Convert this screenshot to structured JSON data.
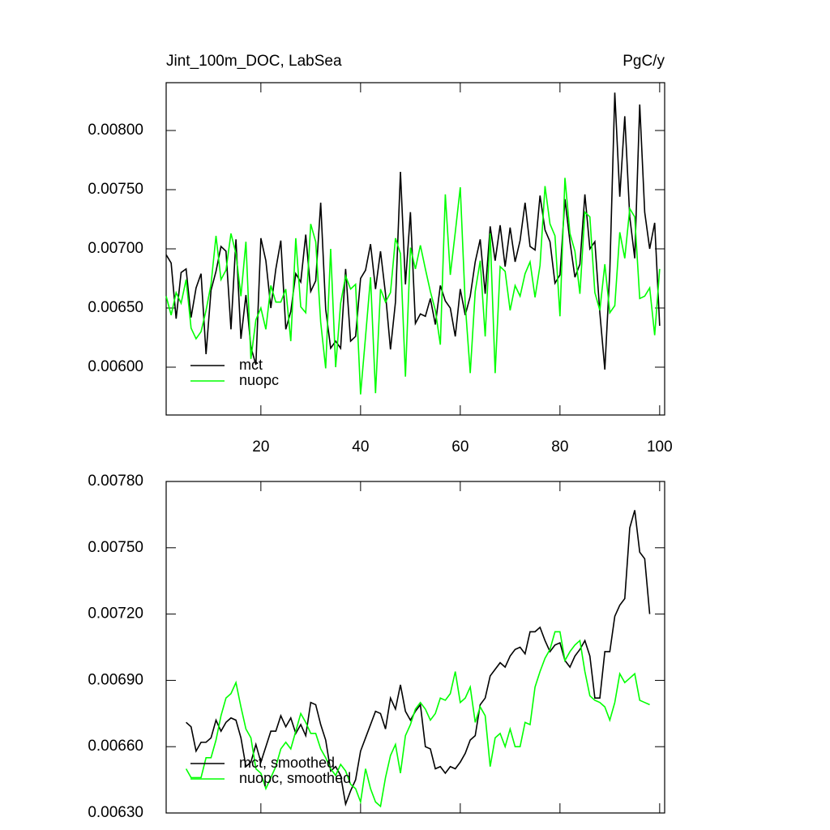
{
  "chart_data": [
    {
      "type": "line",
      "title": "Jint_100m_DOC, LabSea",
      "right_title": "PgC/y",
      "x": [
        1,
        2,
        3,
        4,
        5,
        6,
        7,
        8,
        9,
        10,
        11,
        12,
        13,
        14,
        15,
        16,
        17,
        18,
        19,
        20,
        21,
        22,
        23,
        24,
        25,
        26,
        27,
        28,
        29,
        30,
        31,
        32,
        33,
        34,
        35,
        36,
        37,
        38,
        39,
        40,
        41,
        42,
        43,
        44,
        45,
        46,
        47,
        48,
        49,
        50,
        51,
        52,
        53,
        54,
        55,
        56,
        57,
        58,
        59,
        60,
        61,
        62,
        63,
        64,
        65,
        66,
        67,
        68,
        69,
        70,
        71,
        72,
        73,
        74,
        75,
        76,
        77,
        78,
        79,
        80,
        81,
        82,
        83,
        84,
        85,
        86,
        87,
        88,
        89,
        90,
        91,
        92,
        93,
        94,
        95,
        96,
        97,
        98,
        99,
        100
      ],
      "series": [
        {
          "name": "mct",
          "color": "#000000",
          "values": [
            0.00695,
            0.00688,
            0.00641,
            0.0068,
            0.00683,
            0.00642,
            0.00667,
            0.00679,
            0.00611,
            0.00665,
            0.00681,
            0.00702,
            0.00698,
            0.00632,
            0.00708,
            0.00624,
            0.00661,
            0.00617,
            0.00602,
            0.00709,
            0.0069,
            0.0065,
            0.00683,
            0.00707,
            0.00632,
            0.00647,
            0.00679,
            0.00672,
            0.00712,
            0.00664,
            0.00673,
            0.00739,
            0.00649,
            0.00616,
            0.00622,
            0.00616,
            0.00683,
            0.00622,
            0.00626,
            0.00675,
            0.00682,
            0.00704,
            0.00666,
            0.00698,
            0.00662,
            0.00615,
            0.00655,
            0.00765,
            0.0067,
            0.00731,
            0.00637,
            0.00645,
            0.00643,
            0.00658,
            0.00636,
            0.00669,
            0.00656,
            0.0065,
            0.00626,
            0.00666,
            0.00644,
            0.0066,
            0.00689,
            0.00708,
            0.00662,
            0.00719,
            0.0069,
            0.0072,
            0.00685,
            0.00718,
            0.00689,
            0.00707,
            0.00739,
            0.00702,
            0.00699,
            0.00745,
            0.00716,
            0.00706,
            0.00671,
            0.00678,
            0.00742,
            0.00706,
            0.00676,
            0.00687,
            0.00746,
            0.007,
            0.00706,
            0.00646,
            0.00598,
            0.00681,
            0.00832,
            0.00744,
            0.00812,
            0.00727,
            0.00692,
            0.00822,
            0.00731,
            0.007,
            0.00722,
            0.00635
          ]
        },
        {
          "name": "nuopc",
          "color": "#00ff00",
          "values": [
            0.0066,
            0.00644,
            0.00663,
            0.00654,
            0.00674,
            0.00633,
            0.00624,
            0.0063,
            0.00648,
            0.0067,
            0.00711,
            0.00674,
            0.00682,
            0.00713,
            0.00696,
            0.0066,
            0.00706,
            0.00607,
            0.0064,
            0.0065,
            0.00632,
            0.00669,
            0.00655,
            0.00655,
            0.00666,
            0.00622,
            0.00709,
            0.00651,
            0.00646,
            0.00721,
            0.00706,
            0.00638,
            0.00599,
            0.007,
            0.006,
            0.00654,
            0.00677,
            0.00666,
            0.0067,
            0.00577,
            0.00626,
            0.00676,
            0.00578,
            0.00666,
            0.00655,
            0.00663,
            0.00709,
            0.00696,
            0.00592,
            0.00701,
            0.00683,
            0.00703,
            0.00683,
            0.00664,
            0.00648,
            0.00619,
            0.00746,
            0.00678,
            0.00714,
            0.00752,
            0.00653,
            0.00595,
            0.00664,
            0.0069,
            0.00626,
            0.00713,
            0.00595,
            0.00685,
            0.00681,
            0.00648,
            0.00669,
            0.0066,
            0.00679,
            0.00689,
            0.00659,
            0.00686,
            0.00753,
            0.00721,
            0.00711,
            0.00643,
            0.0076,
            0.00713,
            0.00698,
            0.00662,
            0.00731,
            0.00727,
            0.00663,
            0.00648,
            0.00687,
            0.00646,
            0.00652,
            0.00714,
            0.00692,
            0.00734,
            0.00727,
            0.00658,
            0.0066,
            0.00667,
            0.00627,
            0.00683
          ]
        }
      ],
      "xlim": [
        1,
        101
      ],
      "xticks": [
        20,
        40,
        60,
        80,
        100
      ],
      "show_xtick_labels": true,
      "ylim": [
        0.005596,
        0.008404
      ],
      "yticks": [
        {
          "value": 0.006,
          "label": "0.00600"
        },
        {
          "value": 0.0065,
          "label": "0.00650"
        },
        {
          "value": 0.007,
          "label": "0.00700"
        },
        {
          "value": 0.0075,
          "label": "0.00750"
        },
        {
          "value": 0.008,
          "label": "0.00800"
        }
      ],
      "legend": "lower left"
    },
    {
      "type": "line",
      "x": [
        5,
        6,
        7,
        8,
        9,
        10,
        11,
        12,
        13,
        14,
        15,
        16,
        17,
        18,
        19,
        20,
        21,
        22,
        23,
        24,
        25,
        26,
        27,
        28,
        29,
        30,
        31,
        32,
        33,
        34,
        35,
        36,
        37,
        38,
        39,
        40,
        41,
        42,
        43,
        44,
        45,
        46,
        47,
        48,
        49,
        50,
        51,
        52,
        53,
        54,
        55,
        56,
        57,
        58,
        59,
        60,
        61,
        62,
        63,
        64,
        65,
        66,
        67,
        68,
        69,
        70,
        71,
        72,
        73,
        74,
        75,
        76,
        77,
        78,
        79,
        80,
        81,
        82,
        83,
        84,
        85,
        86,
        87,
        88,
        89,
        90,
        91,
        92,
        93,
        94,
        95,
        96,
        97,
        98
      ],
      "series": [
        {
          "name": "mct, smoothed",
          "color": "#000000",
          "values": [
            0.00671,
            0.00669,
            0.00658,
            0.00662,
            0.00662,
            0.00664,
            0.00672,
            0.00667,
            0.00671,
            0.00673,
            0.00672,
            0.00664,
            0.00651,
            0.00653,
            0.00661,
            0.00653,
            0.0066,
            0.00667,
            0.00667,
            0.00674,
            0.00669,
            0.00673,
            0.00666,
            0.0067,
            0.00665,
            0.0068,
            0.00679,
            0.0067,
            0.00663,
            0.00649,
            0.00651,
            0.00647,
            0.00634,
            0.0064,
            0.00645,
            0.00658,
            0.00664,
            0.0067,
            0.00676,
            0.00675,
            0.00668,
            0.00682,
            0.00677,
            0.00688,
            0.00676,
            0.00672,
            0.00676,
            0.00679,
            0.0066,
            0.00659,
            0.0065,
            0.00651,
            0.00648,
            0.00651,
            0.0065,
            0.00653,
            0.00657,
            0.00663,
            0.00665,
            0.00679,
            0.00682,
            0.00692,
            0.00695,
            0.00698,
            0.00696,
            0.00701,
            0.00704,
            0.00705,
            0.00702,
            0.00712,
            0.00712,
            0.00714,
            0.00708,
            0.00703,
            0.00706,
            0.00707,
            0.00699,
            0.00696,
            0.00701,
            0.00704,
            0.00708,
            0.00701,
            0.00682,
            0.00682,
            0.00703,
            0.00703,
            0.00719,
            0.00724,
            0.00727,
            0.00759,
            0.00767,
            0.00748,
            0.00745,
            0.0072
          ]
        },
        {
          "name": "nuopc, smoothed",
          "color": "#00ff00",
          "values": [
            0.0065,
            0.00646,
            0.00646,
            0.00646,
            0.00655,
            0.00655,
            0.00663,
            0.00674,
            0.00682,
            0.00684,
            0.00689,
            0.00678,
            0.00668,
            0.00664,
            0.0065,
            0.00648,
            0.00641,
            0.00646,
            0.00651,
            0.00659,
            0.00662,
            0.00659,
            0.00667,
            0.00675,
            0.00671,
            0.00666,
            0.00666,
            0.00659,
            0.00655,
            0.0065,
            0.00647,
            0.00652,
            0.00649,
            0.00643,
            0.00641,
            0.00635,
            0.0065,
            0.00641,
            0.00635,
            0.00633,
            0.00646,
            0.00656,
            0.00661,
            0.00648,
            0.00665,
            0.0067,
            0.00677,
            0.0068,
            0.00677,
            0.00672,
            0.00675,
            0.00682,
            0.00681,
            0.00684,
            0.00694,
            0.0068,
            0.00682,
            0.00687,
            0.00671,
            0.00678,
            0.00674,
            0.00651,
            0.00664,
            0.00666,
            0.0066,
            0.00668,
            0.0066,
            0.0066,
            0.00671,
            0.0067,
            0.00687,
            0.00694,
            0.007,
            0.00704,
            0.00712,
            0.00712,
            0.00699,
            0.00703,
            0.00706,
            0.00708,
            0.00694,
            0.00683,
            0.00681,
            0.0068,
            0.00678,
            0.00672,
            0.0068,
            0.00693,
            0.00689,
            0.00691,
            0.00693,
            0.00681,
            0.0068,
            0.00679
          ]
        }
      ],
      "xlim": [
        1,
        101
      ],
      "xticks": [
        20,
        40,
        60,
        80,
        100
      ],
      "show_xtick_labels": false,
      "ylim": [
        0.0063,
        0.0078
      ],
      "yticks": [
        {
          "value": 0.0063,
          "label": "0.00630"
        },
        {
          "value": 0.0066,
          "label": "0.00660"
        },
        {
          "value": 0.0069,
          "label": "0.00690"
        },
        {
          "value": 0.0072,
          "label": "0.00720"
        },
        {
          "value": 0.0075,
          "label": "0.00750"
        },
        {
          "value": 0.0078,
          "label": "0.00780"
        }
      ],
      "legend": "lower left"
    }
  ]
}
